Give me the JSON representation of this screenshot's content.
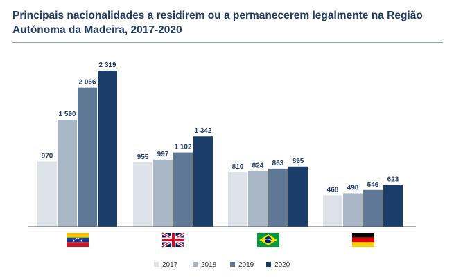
{
  "title": "Principais nacionalidades a residirem ou a permanecerem legalmente na Região Autónoma da Madeira, 2017-2020",
  "chart_data": {
    "type": "bar",
    "title": "Principais nacionalidades a residirem ou a permanecerem legalmente na Região Autónoma da Madeira, 2017-2020",
    "categories": [
      "venezuela-flag",
      "united-kingdom-flag",
      "brazil-flag",
      "germany-flag"
    ],
    "series": [
      {
        "name": "2017",
        "color": "#dde2e9",
        "values": [
          970,
          955,
          810,
          468
        ],
        "labels": [
          "970",
          "955",
          "810",
          "468"
        ]
      },
      {
        "name": "2018",
        "color": "#a9b6c6",
        "values": [
          1590,
          997,
          824,
          498
        ],
        "labels": [
          "1 590",
          "997",
          "824",
          "498"
        ]
      },
      {
        "name": "2019",
        "color": "#5f7896",
        "values": [
          2066,
          1102,
          863,
          546
        ],
        "labels": [
          "2 066",
          "1 102",
          "863",
          "546"
        ]
      },
      {
        "name": "2020",
        "color": "#1b3d69",
        "values": [
          2319,
          1342,
          895,
          623
        ],
        "labels": [
          "2 319",
          "1 342",
          "895",
          "623"
        ]
      }
    ],
    "ylim": [
      0,
      2319
    ],
    "grid": false,
    "legend_position": "bottom-center"
  }
}
